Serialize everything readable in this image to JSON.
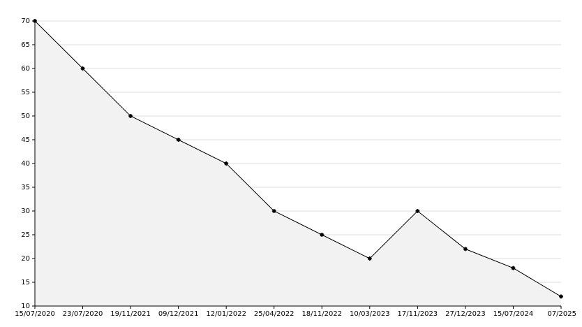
{
  "chart_data": {
    "type": "area",
    "categories": [
      "15/07/2020",
      "23/07/2020",
      "19/11/2021",
      "09/12/2021",
      "12/01/2022",
      "25/04/2022",
      "18/11/2022",
      "10/03/2023",
      "17/11/2023",
      "27/12/2023",
      "15/07/2024",
      "07/2025"
    ],
    "values": [
      70,
      60,
      50,
      45,
      40,
      30,
      25,
      20,
      30,
      22,
      18,
      12
    ],
    "color": "#000000",
    "fill_color": "#f2f2f2",
    "ylim": [
      10,
      70
    ],
    "yticks": [
      10,
      15,
      20,
      25,
      30,
      35,
      40,
      45,
      50,
      55,
      60,
      65,
      70
    ],
    "grid": true
  }
}
